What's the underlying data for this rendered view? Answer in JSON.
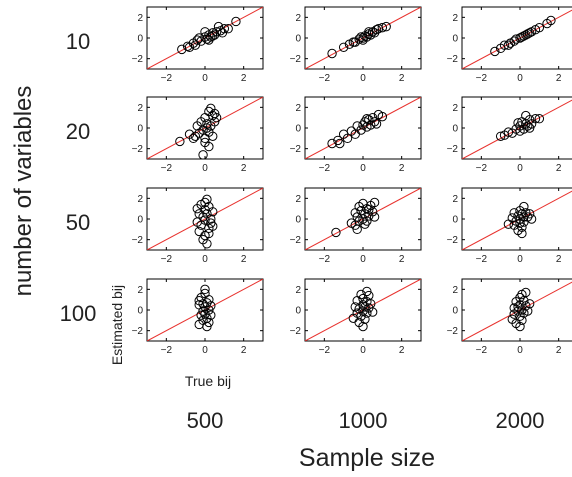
{
  "chart_data": {
    "type": "scatter",
    "layout": "grid of scatter plots",
    "row_factor_label": "number of variables",
    "col_factor_label": "Sample size",
    "rows": [
      "10",
      "20",
      "50",
      "100"
    ],
    "cols": [
      "500",
      "1000",
      "2000"
    ],
    "xlabel": "True bij",
    "ylabel": "Estimated bij",
    "xlim": [
      -3,
      3
    ],
    "ylim": [
      -3,
      3
    ],
    "xticks": [
      -2,
      0,
      2
    ],
    "yticks": [
      -2,
      0,
      2
    ],
    "reference_line": {
      "slope": 1,
      "intercept": 0,
      "color": "#e8322e"
    },
    "marker": "open-circle",
    "panels": [
      {
        "row": "10",
        "col": "500",
        "points": [
          [
            -1.2,
            -1.1
          ],
          [
            -0.9,
            -0.8
          ],
          [
            -0.6,
            -0.5
          ],
          [
            -0.4,
            -0.2
          ],
          [
            -0.2,
            -0.3
          ],
          [
            0.0,
            0.1
          ],
          [
            0.1,
            -0.1
          ],
          [
            0.2,
            0.3
          ],
          [
            0.3,
            0.1
          ],
          [
            0.4,
            0.5
          ],
          [
            0.5,
            0.3
          ],
          [
            0.6,
            0.6
          ],
          [
            0.8,
            0.7
          ],
          [
            1.0,
            0.9
          ],
          [
            1.6,
            1.6
          ],
          [
            -0.5,
            -0.7
          ],
          [
            0.2,
            -0.2
          ],
          [
            0.7,
            1.1
          ],
          [
            0.0,
            0.6
          ],
          [
            -0.3,
            0.0
          ],
          [
            0.9,
            0.5
          ],
          [
            1.2,
            0.9
          ],
          [
            -0.8,
            -0.9
          ],
          [
            0.4,
            0.2
          ]
        ]
      },
      {
        "row": "10",
        "col": "1000",
        "points": [
          [
            -1.6,
            -1.5
          ],
          [
            -1.0,
            -0.9
          ],
          [
            -0.7,
            -0.6
          ],
          [
            -0.4,
            -0.4
          ],
          [
            -0.2,
            -0.1
          ],
          [
            0.0,
            0.0
          ],
          [
            0.1,
            0.2
          ],
          [
            0.2,
            0.1
          ],
          [
            0.3,
            0.4
          ],
          [
            0.5,
            0.6
          ],
          [
            0.6,
            0.5
          ],
          [
            0.8,
            0.9
          ],
          [
            1.0,
            1.0
          ],
          [
            0.4,
            0.3
          ],
          [
            -0.5,
            -0.4
          ],
          [
            0.7,
            0.8
          ],
          [
            1.2,
            1.1
          ],
          [
            0.0,
            -0.2
          ],
          [
            -0.1,
            0.1
          ],
          [
            0.3,
            0.6
          ]
        ]
      },
      {
        "row": "10",
        "col": "2000",
        "points": [
          [
            -1.3,
            -1.3
          ],
          [
            -1.0,
            -1.0
          ],
          [
            -0.8,
            -0.7
          ],
          [
            -0.5,
            -0.5
          ],
          [
            -0.3,
            -0.3
          ],
          [
            0.0,
            0.0
          ],
          [
            0.1,
            0.1
          ],
          [
            0.3,
            0.3
          ],
          [
            0.5,
            0.5
          ],
          [
            0.6,
            0.6
          ],
          [
            0.8,
            0.8
          ],
          [
            1.0,
            1.0
          ],
          [
            1.4,
            1.4
          ],
          [
            1.6,
            1.7
          ],
          [
            -0.6,
            -0.7
          ],
          [
            0.2,
            0.2
          ],
          [
            0.4,
            0.4
          ],
          [
            -0.2,
            -0.1
          ]
        ]
      },
      {
        "row": "20",
        "col": "500",
        "points": [
          [
            -1.3,
            -1.3
          ],
          [
            -0.8,
            -0.6
          ],
          [
            -0.5,
            -0.8
          ],
          [
            -0.4,
            0.2
          ],
          [
            -0.3,
            -0.5
          ],
          [
            -0.2,
            0.6
          ],
          [
            -0.1,
            -0.2
          ],
          [
            0.0,
            1.0
          ],
          [
            0.0,
            -1.0
          ],
          [
            0.1,
            0.4
          ],
          [
            0.2,
            -0.4
          ],
          [
            0.2,
            1.6
          ],
          [
            0.3,
            0.2
          ],
          [
            0.4,
            -0.8
          ],
          [
            0.4,
            1.2
          ],
          [
            0.5,
            0.6
          ],
          [
            0.6,
            1.0
          ],
          [
            0.2,
            -1.8
          ],
          [
            -0.1,
            -2.6
          ],
          [
            0.0,
            -1.4
          ],
          [
            0.3,
            1.9
          ],
          [
            0.5,
            1.4
          ],
          [
            -0.6,
            -1.0
          ],
          [
            0.1,
            0.0
          ]
        ]
      },
      {
        "row": "20",
        "col": "1000",
        "points": [
          [
            -1.6,
            -1.5
          ],
          [
            -1.3,
            -1.2
          ],
          [
            -1.0,
            -0.6
          ],
          [
            -0.8,
            -1.0
          ],
          [
            -0.6,
            -0.3
          ],
          [
            -0.4,
            -0.6
          ],
          [
            -0.3,
            0.2
          ],
          [
            -0.1,
            -0.2
          ],
          [
            0.0,
            0.3
          ],
          [
            0.1,
            0.6
          ],
          [
            0.2,
            0.1
          ],
          [
            0.3,
            0.8
          ],
          [
            0.4,
            0.3
          ],
          [
            0.5,
            1.0
          ],
          [
            0.6,
            0.6
          ],
          [
            0.8,
            1.3
          ],
          [
            1.0,
            1.1
          ],
          [
            -1.2,
            -1.5
          ],
          [
            0.7,
            0.4
          ],
          [
            0.2,
            0.9
          ]
        ]
      },
      {
        "row": "20",
        "col": "2000",
        "points": [
          [
            -1.0,
            -0.8
          ],
          [
            -0.8,
            -0.7
          ],
          [
            -0.6,
            -0.4
          ],
          [
            -0.4,
            -0.5
          ],
          [
            -0.2,
            -0.1
          ],
          [
            0.0,
            0.2
          ],
          [
            0.0,
            -0.3
          ],
          [
            0.1,
            0.6
          ],
          [
            0.2,
            -0.1
          ],
          [
            0.3,
            0.4
          ],
          [
            0.4,
            0.2
          ],
          [
            0.5,
            0.8
          ],
          [
            0.6,
            0.4
          ],
          [
            0.8,
            0.9
          ],
          [
            1.0,
            0.9
          ],
          [
            0.3,
            1.2
          ],
          [
            -0.1,
            0.5
          ],
          [
            0.5,
            0.0
          ]
        ]
      },
      {
        "row": "50",
        "col": "500",
        "points": [
          [
            -0.4,
            -0.3
          ],
          [
            -0.3,
            0.5
          ],
          [
            -0.3,
            -1.2
          ],
          [
            -0.2,
            1.4
          ],
          [
            -0.2,
            -0.6
          ],
          [
            -0.1,
            0.2
          ],
          [
            -0.1,
            -2.0
          ],
          [
            0.0,
            0.9
          ],
          [
            0.0,
            -0.1
          ],
          [
            0.0,
            -1.6
          ],
          [
            0.1,
            1.9
          ],
          [
            0.1,
            0.5
          ],
          [
            0.2,
            -0.9
          ],
          [
            0.2,
            1.2
          ],
          [
            0.3,
            -0.4
          ],
          [
            0.3,
            0.0
          ],
          [
            0.4,
            0.7
          ],
          [
            0.1,
            -2.4
          ],
          [
            -0.4,
            1.0
          ],
          [
            0.2,
            -1.4
          ],
          [
            0.4,
            -0.7
          ],
          [
            0.0,
            1.6
          ]
        ]
      },
      {
        "row": "50",
        "col": "1000",
        "points": [
          [
            -1.4,
            -1.3
          ],
          [
            -0.6,
            -0.4
          ],
          [
            -0.4,
            0.6
          ],
          [
            -0.4,
            -0.6
          ],
          [
            -0.3,
            0.2
          ],
          [
            -0.2,
            1.2
          ],
          [
            -0.2,
            -0.2
          ],
          [
            -0.1,
            0.8
          ],
          [
            0.0,
            0.0
          ],
          [
            0.0,
            1.5
          ],
          [
            0.1,
            -0.5
          ],
          [
            0.1,
            0.5
          ],
          [
            0.2,
            1.0
          ],
          [
            0.2,
            -0.2
          ],
          [
            0.3,
            0.3
          ],
          [
            0.4,
            1.3
          ],
          [
            0.5,
            0.7
          ],
          [
            0.6,
            1.6
          ],
          [
            0.6,
            0.2
          ],
          [
            -0.3,
            -1.0
          ],
          [
            0.3,
            0.9
          ]
        ]
      },
      {
        "row": "50",
        "col": "2000",
        "points": [
          [
            -0.6,
            -0.5
          ],
          [
            -0.4,
            0.1
          ],
          [
            -0.3,
            -0.6
          ],
          [
            -0.3,
            0.6
          ],
          [
            -0.2,
            -0.2
          ],
          [
            -0.1,
            0.3
          ],
          [
            0.0,
            -0.4
          ],
          [
            0.0,
            0.8
          ],
          [
            0.0,
            0.0
          ],
          [
            0.1,
            -0.8
          ],
          [
            0.1,
            0.5
          ],
          [
            0.2,
            0.2
          ],
          [
            0.2,
            -0.3
          ],
          [
            0.3,
            0.6
          ],
          [
            0.4,
            0.2
          ],
          [
            0.5,
            0.5
          ],
          [
            0.6,
            0.0
          ],
          [
            0.2,
            1.2
          ],
          [
            -0.1,
            -1.1
          ],
          [
            0.1,
            -1.4
          ]
        ]
      },
      {
        "row": "100",
        "col": "500",
        "points": [
          [
            -0.3,
            -1.4
          ],
          [
            -0.3,
            0.5
          ],
          [
            -0.2,
            -0.5
          ],
          [
            -0.2,
            1.2
          ],
          [
            -0.1,
            -0.1
          ],
          [
            -0.1,
            -1.0
          ],
          [
            0.0,
            0.3
          ],
          [
            0.0,
            1.6
          ],
          [
            0.0,
            -0.4
          ],
          [
            0.0,
            2.0
          ],
          [
            0.1,
            -1.6
          ],
          [
            0.1,
            0.7
          ],
          [
            0.1,
            -0.8
          ],
          [
            0.2,
            1.0
          ],
          [
            0.2,
            0.0
          ],
          [
            0.3,
            -0.5
          ],
          [
            0.3,
            0.4
          ],
          [
            -0.3,
            0.9
          ],
          [
            0.2,
            -1.2
          ],
          [
            -0.1,
            0.6
          ]
        ]
      },
      {
        "row": "100",
        "col": "1000",
        "points": [
          [
            -0.5,
            -0.8
          ],
          [
            -0.4,
            0.3
          ],
          [
            -0.3,
            -0.3
          ],
          [
            -0.3,
            0.9
          ],
          [
            -0.2,
            -1.2
          ],
          [
            -0.2,
            0.1
          ],
          [
            -0.1,
            1.5
          ],
          [
            -0.1,
            -0.6
          ],
          [
            0.0,
            0.5
          ],
          [
            0.0,
            -0.1
          ],
          [
            0.0,
            1.1
          ],
          [
            0.1,
            -0.9
          ],
          [
            0.1,
            0.3
          ],
          [
            0.2,
            0.8
          ],
          [
            0.2,
            -0.3
          ],
          [
            0.3,
            1.4
          ],
          [
            0.3,
            0.2
          ],
          [
            0.4,
            0.6
          ],
          [
            0.5,
            -0.2
          ],
          [
            0.0,
            -1.6
          ],
          [
            0.2,
            1.8
          ]
        ]
      },
      {
        "row": "100",
        "col": "2000",
        "points": [
          [
            -0.4,
            -0.9
          ],
          [
            -0.3,
            0.2
          ],
          [
            -0.3,
            -0.4
          ],
          [
            -0.2,
            0.8
          ],
          [
            -0.2,
            -1.3
          ],
          [
            -0.1,
            0.3
          ],
          [
            -0.1,
            -0.1
          ],
          [
            0.0,
            1.2
          ],
          [
            0.0,
            -0.6
          ],
          [
            0.0,
            0.5
          ],
          [
            0.1,
            -1.0
          ],
          [
            0.1,
            1.5
          ],
          [
            0.1,
            0.0
          ],
          [
            0.2,
            0.9
          ],
          [
            0.2,
            -0.3
          ],
          [
            0.3,
            0.4
          ],
          [
            0.3,
            1.7
          ],
          [
            0.4,
            -0.1
          ],
          [
            0.5,
            0.6
          ],
          [
            0.0,
            -1.6
          ]
        ]
      }
    ]
  }
}
